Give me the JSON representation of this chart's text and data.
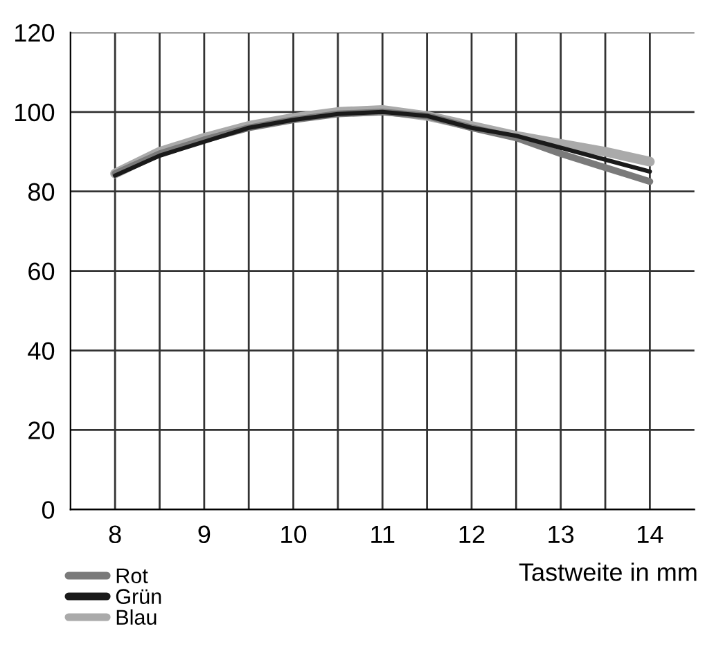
{
  "chart_data": {
    "type": "line",
    "xlabel": "Tastweite in mm",
    "x": [
      8,
      8.5,
      9,
      9.5,
      10,
      10.5,
      11,
      11.5,
      12,
      12.5,
      13,
      13.5,
      14
    ],
    "series": [
      {
        "name": "Rot",
        "color": "#7a7a7a",
        "values": [
          84.5,
          89.5,
          93,
          96,
          98,
          99.5,
          100,
          99,
          96,
          93.5,
          89.5,
          86,
          82.5
        ]
      },
      {
        "name": "Grün",
        "color": "#1a1a1a",
        "values": [
          84,
          89,
          92.5,
          96,
          98,
          99.5,
          100,
          99,
          96,
          94,
          91,
          88,
          85
        ]
      },
      {
        "name": "Blau",
        "color": "#aaaaaa",
        "values": [
          84.5,
          90,
          93.5,
          96.5,
          98.5,
          100,
          100.5,
          99,
          96.5,
          94,
          92,
          90,
          87.5
        ]
      }
    ],
    "xlim": [
      7.5,
      14.5
    ],
    "ylim": [
      0,
      120
    ],
    "xticks": [
      8,
      {
        "value": 8.5,
        "label": null
      },
      9,
      {
        "value": 9.5,
        "label": null
      },
      10,
      {
        "value": 10.5,
        "label": null
      },
      11,
      {
        "value": 11.5,
        "label": null
      },
      12,
      {
        "value": 12.5,
        "label": null
      },
      13,
      {
        "value": 13.5,
        "label": null
      },
      14
    ],
    "yticks": [
      0,
      20,
      40,
      60,
      80,
      100,
      120
    ],
    "grid": true,
    "legend": "bottom left",
    "marker": "none",
    "line_style": "solid"
  }
}
